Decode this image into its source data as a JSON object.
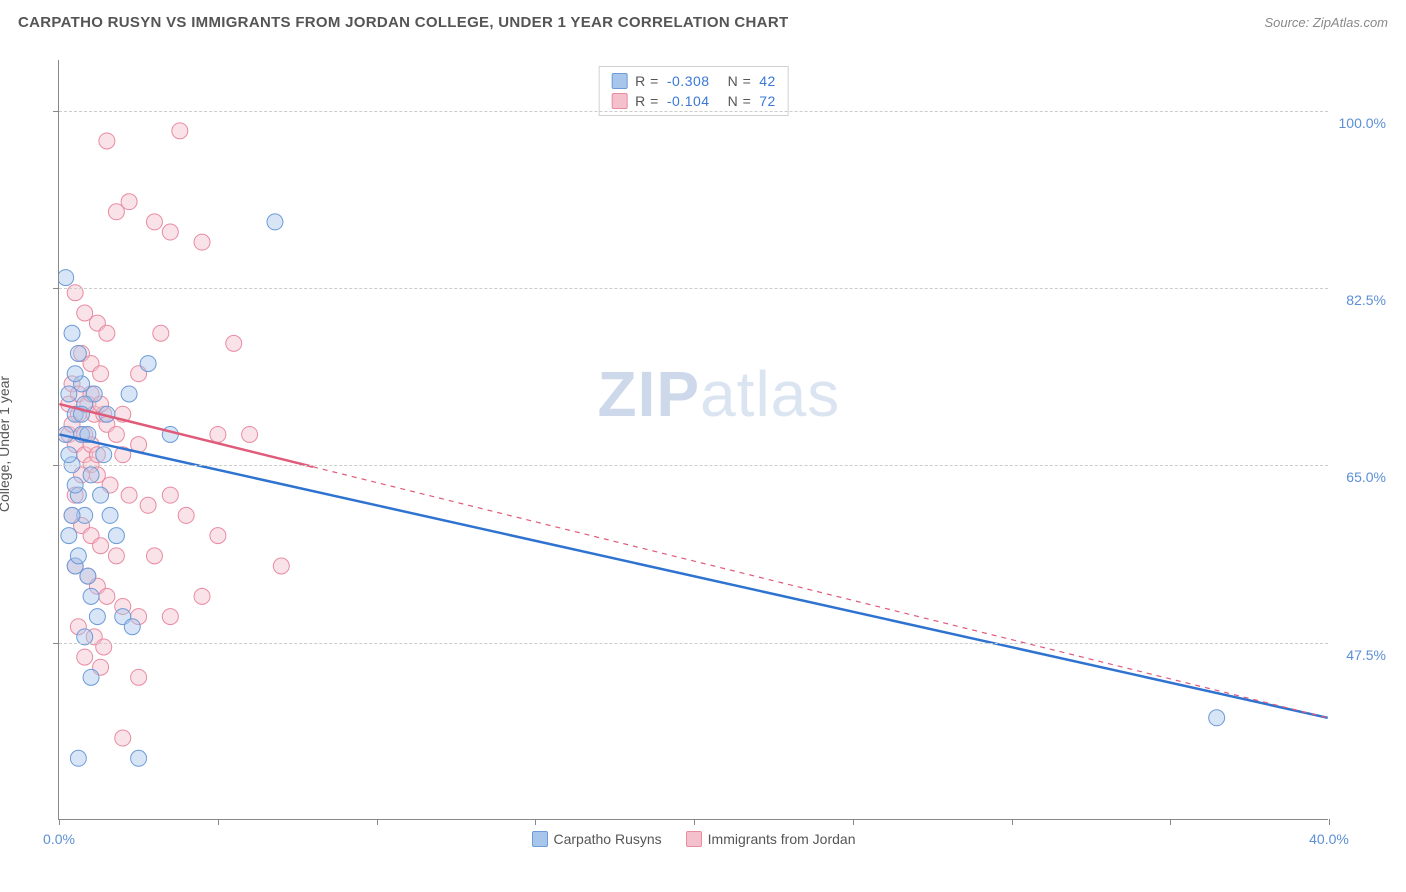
{
  "header": {
    "title": "CARPATHO RUSYN VS IMMIGRANTS FROM JORDAN COLLEGE, UNDER 1 YEAR CORRELATION CHART",
    "source": "Source: ZipAtlas.com"
  },
  "chart": {
    "type": "scatter",
    "background_color": "#ffffff",
    "grid_color": "#cccccc",
    "axis_color": "#888888",
    "label_color": "#555555",
    "tick_color": "#5b8fd6",
    "ylabel": "College, Under 1 year",
    "xlim": [
      0,
      40
    ],
    "ylim": [
      30,
      105
    ],
    "x_ticks": [
      0,
      5,
      10,
      15,
      20,
      25,
      30,
      35,
      40
    ],
    "x_tick_labels": {
      "0": "0.0%",
      "40": "40.0%"
    },
    "y_ticks": [
      47.5,
      65.0,
      82.5,
      100.0
    ],
    "y_tick_labels": [
      "47.5%",
      "65.0%",
      "82.5%",
      "100.0%"
    ],
    "label_fontsize": 14,
    "tick_fontsize": 14,
    "marker_radius": 8,
    "marker_opacity": 0.45,
    "watermark": {
      "bold": "ZIP",
      "rest": "atlas",
      "color": "#dbe5f1",
      "fontsize": 64
    },
    "series": [
      {
        "name": "Carpatho Rusyns",
        "color_fill": "#a8c5ec",
        "color_stroke": "#6b9bd8",
        "line_color": "#2f73d0",
        "line_width": 2.5,
        "trend": {
          "x1": 0,
          "y1": 68,
          "x2": 40,
          "y2": 40,
          "solid_until_x": 40
        },
        "stats": {
          "R": "-0.308",
          "N": "42"
        },
        "points": [
          [
            0.2,
            83.5
          ],
          [
            0.4,
            78
          ],
          [
            0.6,
            76
          ],
          [
            0.3,
            72
          ],
          [
            0.5,
            70
          ],
          [
            0.7,
            68
          ],
          [
            0.4,
            65
          ],
          [
            0.6,
            62
          ],
          [
            0.8,
            60
          ],
          [
            0.3,
            58
          ],
          [
            0.5,
            55
          ],
          [
            1.0,
            52
          ],
          [
            1.2,
            50
          ],
          [
            0.8,
            48
          ],
          [
            2.0,
            50
          ],
          [
            2.3,
            49
          ],
          [
            1.0,
            44
          ],
          [
            2.5,
            36
          ],
          [
            0.6,
            36
          ],
          [
            1.8,
            58
          ],
          [
            2.8,
            75
          ],
          [
            6.8,
            89
          ],
          [
            3.5,
            68
          ],
          [
            36.5,
            40
          ],
          [
            0.9,
            68
          ],
          [
            1.1,
            72
          ],
          [
            1.4,
            66
          ],
          [
            0.7,
            73
          ],
          [
            0.2,
            68
          ],
          [
            0.4,
            60
          ],
          [
            0.6,
            56
          ],
          [
            1.3,
            62
          ],
          [
            0.5,
            74
          ],
          [
            0.8,
            71
          ],
          [
            1.0,
            64
          ],
          [
            0.3,
            66
          ],
          [
            0.5,
            63
          ],
          [
            0.7,
            70
          ],
          [
            1.5,
            70
          ],
          [
            2.2,
            72
          ],
          [
            0.9,
            54
          ],
          [
            1.6,
            60
          ]
        ]
      },
      {
        "name": "Immigrants from Jordan",
        "color_fill": "#f4c0cb",
        "color_stroke": "#e88ba1",
        "line_color": "#e05a7a",
        "line_width": 2.5,
        "trend": {
          "x1": 0,
          "y1": 71,
          "x2": 40,
          "y2": 40,
          "solid_until_x": 8
        },
        "stats": {
          "R": "-0.104",
          "N": "72"
        },
        "points": [
          [
            3.8,
            98
          ],
          [
            1.5,
            97
          ],
          [
            2.2,
            91
          ],
          [
            1.8,
            90
          ],
          [
            3.0,
            89
          ],
          [
            3.5,
            88
          ],
          [
            4.5,
            87
          ],
          [
            0.5,
            82
          ],
          [
            0.8,
            80
          ],
          [
            1.2,
            79
          ],
          [
            1.5,
            78
          ],
          [
            3.2,
            78
          ],
          [
            5.5,
            77
          ],
          [
            0.7,
            76
          ],
          [
            1.0,
            75
          ],
          [
            1.3,
            74
          ],
          [
            2.5,
            74
          ],
          [
            0.4,
            73
          ],
          [
            0.6,
            72
          ],
          [
            0.9,
            71
          ],
          [
            1.1,
            70
          ],
          [
            1.4,
            70
          ],
          [
            2.0,
            70
          ],
          [
            5.0,
            68
          ],
          [
            6.0,
            68
          ],
          [
            0.3,
            68
          ],
          [
            0.5,
            67
          ],
          [
            0.8,
            66
          ],
          [
            1.0,
            65
          ],
          [
            1.2,
            64
          ],
          [
            1.6,
            63
          ],
          [
            2.2,
            62
          ],
          [
            2.8,
            61
          ],
          [
            0.4,
            60
          ],
          [
            0.7,
            59
          ],
          [
            1.0,
            58
          ],
          [
            1.3,
            57
          ],
          [
            1.8,
            56
          ],
          [
            3.0,
            56
          ],
          [
            0.5,
            55
          ],
          [
            0.9,
            54
          ],
          [
            1.2,
            53
          ],
          [
            1.5,
            52
          ],
          [
            2.0,
            51
          ],
          [
            2.5,
            50
          ],
          [
            7.0,
            55
          ],
          [
            0.6,
            49
          ],
          [
            1.1,
            48
          ],
          [
            1.4,
            47
          ],
          [
            3.5,
            50
          ],
          [
            4.5,
            52
          ],
          [
            0.8,
            46
          ],
          [
            1.3,
            45
          ],
          [
            2.5,
            44
          ],
          [
            0.5,
            62
          ],
          [
            0.7,
            64
          ],
          [
            1.0,
            67
          ],
          [
            1.5,
            69
          ],
          [
            2.0,
            66
          ],
          [
            0.3,
            71
          ],
          [
            0.6,
            70
          ],
          [
            1.0,
            72
          ],
          [
            1.3,
            71
          ],
          [
            1.8,
            68
          ],
          [
            2.5,
            67
          ],
          [
            0.4,
            69
          ],
          [
            0.8,
            68
          ],
          [
            1.2,
            66
          ],
          [
            2.0,
            38
          ],
          [
            3.5,
            62
          ],
          [
            4.0,
            60
          ],
          [
            5.0,
            58
          ]
        ]
      }
    ],
    "stats_box": {
      "border_color": "#d0d0d0",
      "text_color": "#555555",
      "value_color": "#3b78d8",
      "fontsize": 14
    },
    "bottom_legend": {
      "fontsize": 14,
      "text_color": "#555555"
    }
  }
}
